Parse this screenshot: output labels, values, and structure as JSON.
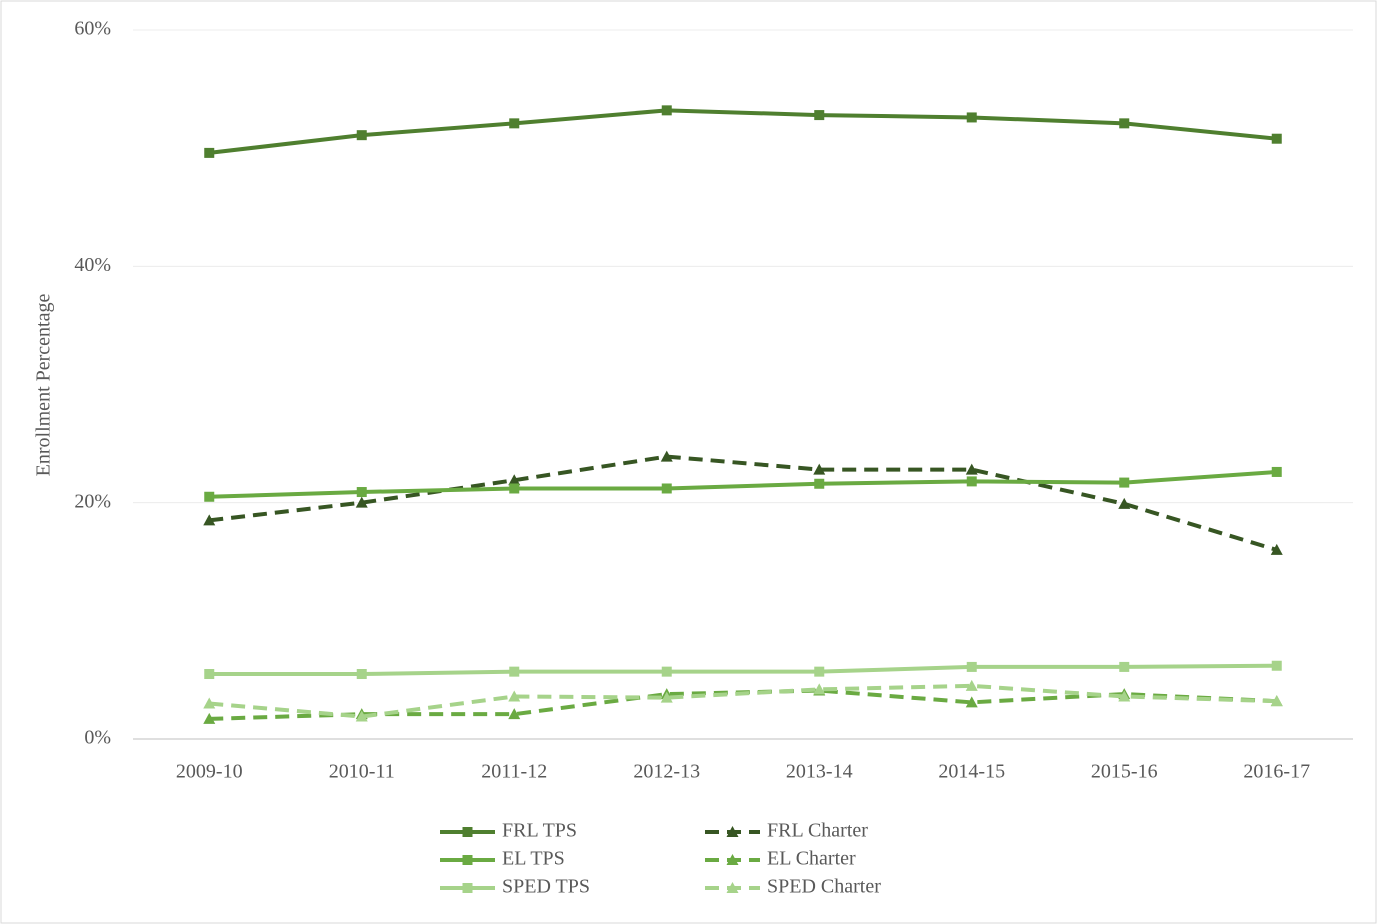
{
  "chart_data": {
    "type": "line",
    "y_label": "Enrollment  Percentage",
    "categories": [
      "2009-10",
      "2010-11",
      "2011-12",
      "2012-13",
      "2013-14",
      "2014-15",
      "2015-16",
      "2016-17"
    ],
    "ylim": [
      0,
      60
    ],
    "yticks": [
      {
        "value": 0,
        "label": "0%"
      },
      {
        "value": 20,
        "label": "20%"
      },
      {
        "value": 40,
        "label": "40%"
      },
      {
        "value": 60,
        "label": "60%"
      }
    ],
    "grid": true,
    "legend": "bottom",
    "series": [
      {
        "name": "FRL TPS",
        "color": "#4f7f2f",
        "marker": "square",
        "dashed": false,
        "values": [
          49.6,
          51.1,
          52.1,
          53.2,
          52.8,
          52.6,
          52.1,
          50.8
        ]
      },
      {
        "name": "FRL Charter",
        "color": "#375623",
        "marker": "triangle",
        "dashed": true,
        "values": [
          18.5,
          20.0,
          21.9,
          23.9,
          22.8,
          22.8,
          19.9,
          16.0
        ]
      },
      {
        "name": "EL TPS",
        "color": "#6aaa42",
        "marker": "square",
        "dashed": false,
        "values": [
          20.5,
          20.9,
          21.2,
          21.2,
          21.6,
          21.8,
          21.7,
          22.6
        ]
      },
      {
        "name": "EL Charter",
        "color": "#6aaa42",
        "marker": "triangle",
        "dashed": true,
        "values": [
          1.7,
          2.1,
          2.1,
          3.8,
          4.1,
          3.1,
          3.8,
          3.2
        ]
      },
      {
        "name": "SPED TPS",
        "color": "#a6d38a",
        "marker": "square",
        "dashed": false,
        "values": [
          5.5,
          5.5,
          5.7,
          5.7,
          5.7,
          6.1,
          6.1,
          6.2
        ]
      },
      {
        "name": "SPED Charter",
        "color": "#a6d38a",
        "marker": "triangle",
        "dashed": true,
        "values": [
          3.0,
          1.9,
          3.6,
          3.5,
          4.2,
          4.5,
          3.6,
          3.2
        ]
      }
    ]
  }
}
